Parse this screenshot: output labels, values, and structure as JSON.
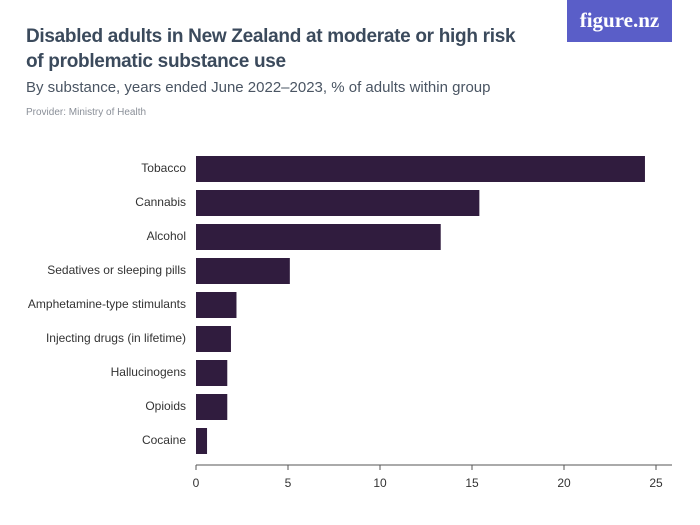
{
  "logo": "figure.nz",
  "chart_data": {
    "type": "hbar",
    "title": "Disabled adults in New Zealand at moderate or high risk of problematic substance use",
    "subtitle": "By substance, years ended June 2022–2023, % of adults within group",
    "provider": "Provider: Ministry of Health",
    "categories": [
      "Tobacco",
      "Cannabis",
      "Alcohol",
      "Sedatives or sleeping pills",
      "Amphetamine-type stimulants",
      "Injecting drugs (in lifetime)",
      "Hallucinogens",
      "Opioids",
      "Cocaine"
    ],
    "values": [
      24.4,
      15.4,
      13.3,
      5.1,
      2.2,
      1.9,
      1.7,
      1.7,
      0.6
    ],
    "color": "#301c3e",
    "xlim": [
      0,
      25
    ],
    "xticks": [
      0,
      5,
      10,
      15,
      20,
      25
    ]
  }
}
